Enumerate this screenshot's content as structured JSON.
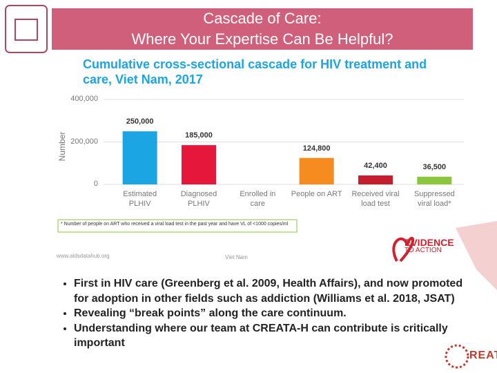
{
  "slide": {
    "title_lines": [
      "Cascade of Care:",
      "Where Your Expertise Can Be Helpful?"
    ],
    "bullets": [
      "First in HIV care (Greenberg et al. 2009, Health Affairs), and now promoted for adoption in other fields such as addiction (Williams et al. 2018, JSAT)",
      "Revealing “break points” along the care continuum.",
      "Understanding where our team at CREATA-H can contribute is critically important"
    ],
    "logos": {
      "evidence": "EVIDENCE",
      "to_action": "TO ACTION",
      "reata": "REATA"
    }
  },
  "chart_data": {
    "type": "bar",
    "title": "Cumulative cross-sectional cascade for HIV treatment and care, Viet Nam, 2017",
    "y_label": "Number",
    "categories": [
      "Estimated PLHIV",
      "Diagnosed PLHIV",
      "Enrolled in care",
      "People on ART",
      "Received viral load test",
      "Suppressed viral load*"
    ],
    "values": [
      250000,
      185000,
      null,
      124800,
      42400,
      36500
    ],
    "value_labels": [
      "250,000",
      "185,000",
      null,
      "124,800",
      "42,400",
      "36,500"
    ],
    "colors": [
      "#1ba5e3",
      "#e5173b",
      null,
      "#f68b1f",
      "#c41f2f",
      "#8cc63f"
    ],
    "ylim": [
      0,
      400000
    ],
    "yticks": [
      0,
      {
        "value": 200000,
        "label": "200,000"
      },
      {
        "value": 400000,
        "label": "400,000"
      }
    ],
    "grid": true,
    "footnote": "* Number of people on ART who received a viral load test in the past year and have VL of <1000 copies/ml",
    "source": "www.aidsdatahub.org",
    "region": "Viet Nam"
  }
}
